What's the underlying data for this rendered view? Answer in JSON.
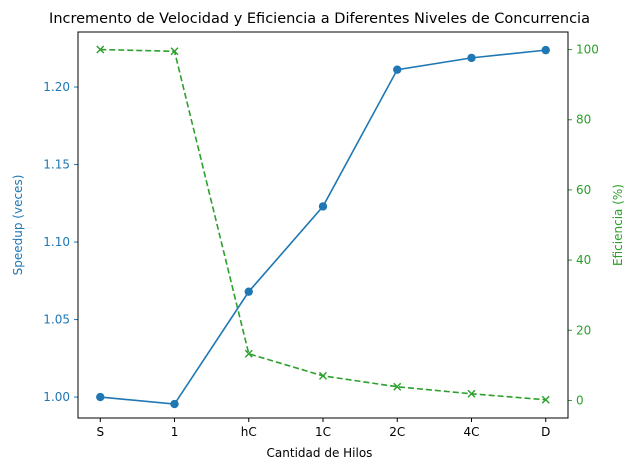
{
  "chart_data": {
    "type": "line",
    "title": "Incremento de Velocidad y Eficiencia a Diferentes Niveles de Concurrencia",
    "xlabel": "Cantidad de Hilos",
    "categories": [
      "S",
      "1",
      "hC",
      "1C",
      "2C",
      "4C",
      "D"
    ],
    "left_axis": {
      "label": "Speedup (veces)",
      "color": "#1f77b4",
      "ylim": [
        0.9865,
        1.2355
      ],
      "ticks": [
        "1.00",
        "1.05",
        "1.10",
        "1.15",
        "1.20"
      ],
      "tick_values": [
        1.0,
        1.05,
        1.1,
        1.15,
        1.2
      ]
    },
    "right_axis": {
      "label": "Eficiencia (%)",
      "color": "#2ca02c",
      "ylim": [
        -5,
        105
      ],
      "ticks": [
        "0",
        "20",
        "40",
        "60",
        "80",
        "100"
      ],
      "tick_values": [
        0,
        20,
        40,
        60,
        80,
        100
      ]
    },
    "series": [
      {
        "axis": "left",
        "color": "#1f77b4",
        "marker": "circle",
        "linestyle": "solid",
        "values": [
          1.0,
          0.9955,
          1.068,
          1.123,
          1.2112,
          1.2188,
          1.2238
        ]
      },
      {
        "axis": "right",
        "color": "#2ca02c",
        "marker": "x",
        "linestyle": "dashed",
        "values": [
          100,
          99.5,
          13.3,
          7.0,
          3.9,
          1.9,
          0.2
        ]
      }
    ],
    "grid": false
  }
}
